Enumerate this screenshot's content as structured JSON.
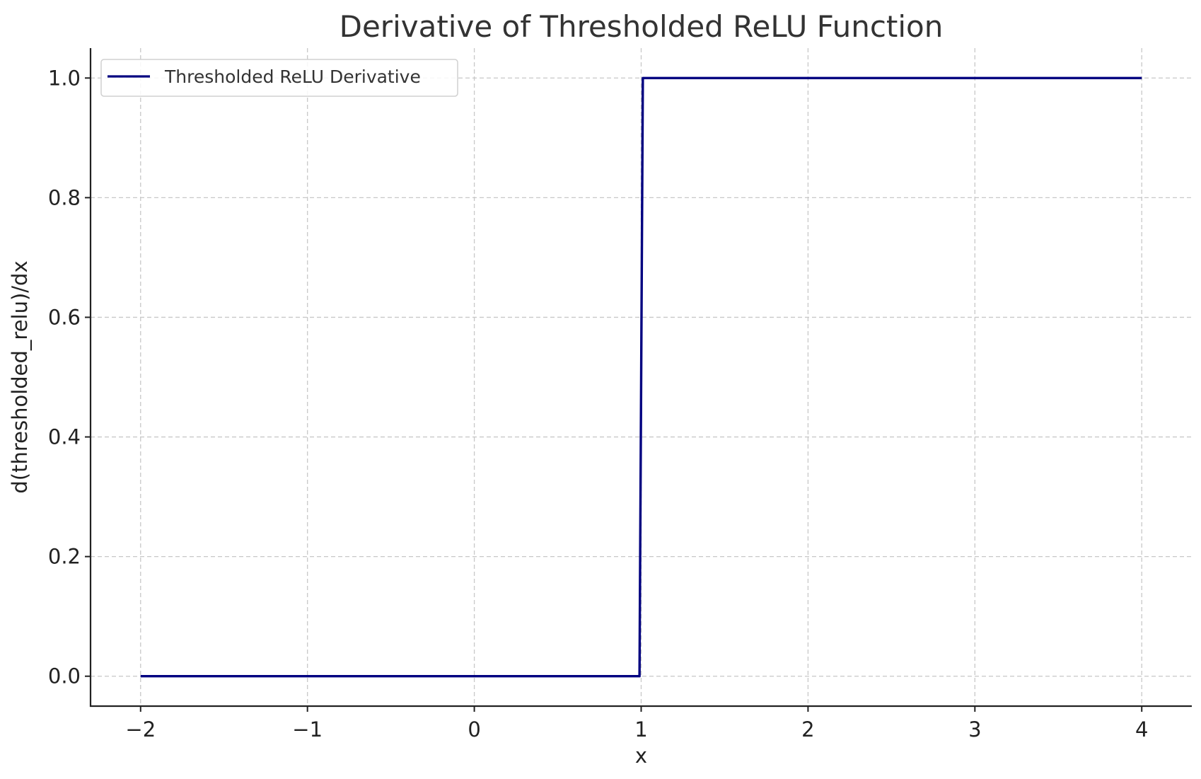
{
  "chart_data": {
    "type": "line",
    "title": "Derivative of Thresholded ReLU Function",
    "xlabel": "x",
    "ylabel": "d(thresholded_relu)/dx",
    "xlim": [
      -2.3,
      4.3
    ],
    "ylim": [
      -0.05,
      1.05
    ],
    "x_ticks": [
      -2,
      -1,
      0,
      1,
      2,
      3,
      4
    ],
    "x_tick_labels": [
      "−2",
      "−1",
      "0",
      "1",
      "2",
      "3",
      "4"
    ],
    "y_ticks": [
      0.0,
      0.2,
      0.4,
      0.6,
      0.8,
      1.0
    ],
    "y_tick_labels": [
      "0.0",
      "0.2",
      "0.4",
      "0.6",
      "0.8",
      "1.0"
    ],
    "grid": true,
    "legend_position": "top-left",
    "series": [
      {
        "name": "Thresholded ReLU Derivative",
        "color": "#000080",
        "x": [
          -2,
          0.99,
          1.01,
          4
        ],
        "y": [
          0,
          0,
          1,
          1
        ]
      }
    ]
  }
}
